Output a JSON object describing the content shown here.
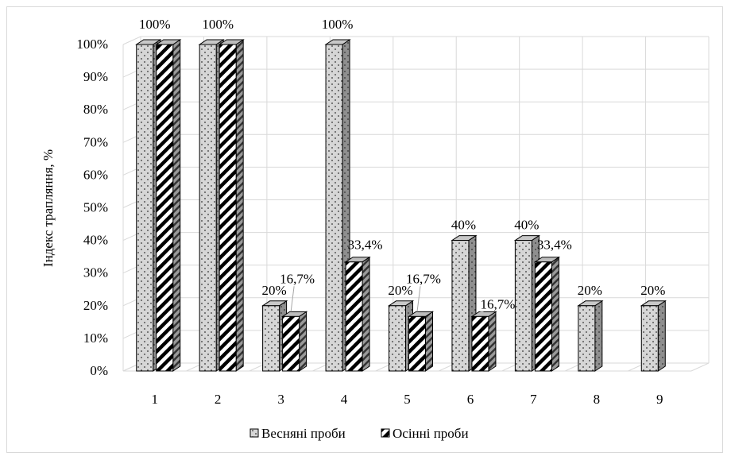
{
  "chart_data": {
    "type": "bar",
    "title": "",
    "xlabel": "",
    "ylabel": "Індекс трапляння, %",
    "ylim": [
      0,
      100
    ],
    "yticks": [
      "0%",
      "10%",
      "20%",
      "30%",
      "40%",
      "50%",
      "60%",
      "70%",
      "80%",
      "90%",
      "100%"
    ],
    "categories": [
      "1",
      "2",
      "3",
      "4",
      "5",
      "6",
      "7",
      "8",
      "9"
    ],
    "series": [
      {
        "name": "Весняні проби",
        "pattern": "dots",
        "values": [
          100,
          100,
          20,
          100,
          20,
          40,
          40,
          20,
          20
        ],
        "labels": [
          "",
          "",
          "20%",
          "100%",
          "20%",
          "40%",
          "40%",
          "20%",
          "20%"
        ]
      },
      {
        "name": "Осінні проби",
        "pattern": "diagonal-stripes",
        "values": [
          100,
          100,
          16.7,
          33.4,
          16.7,
          16.7,
          33.4,
          null,
          null
        ],
        "labels": [
          "",
          "",
          "16,7%",
          "33,4%",
          "16,7%",
          "16,7%",
          "33,4%",
          "",
          ""
        ]
      }
    ],
    "top_labels": [
      {
        "category": "1",
        "text": "100%"
      },
      {
        "category": "2",
        "text": "100%"
      }
    ],
    "legend_position": "bottom",
    "gridlines": true,
    "bar_style": "3d"
  }
}
